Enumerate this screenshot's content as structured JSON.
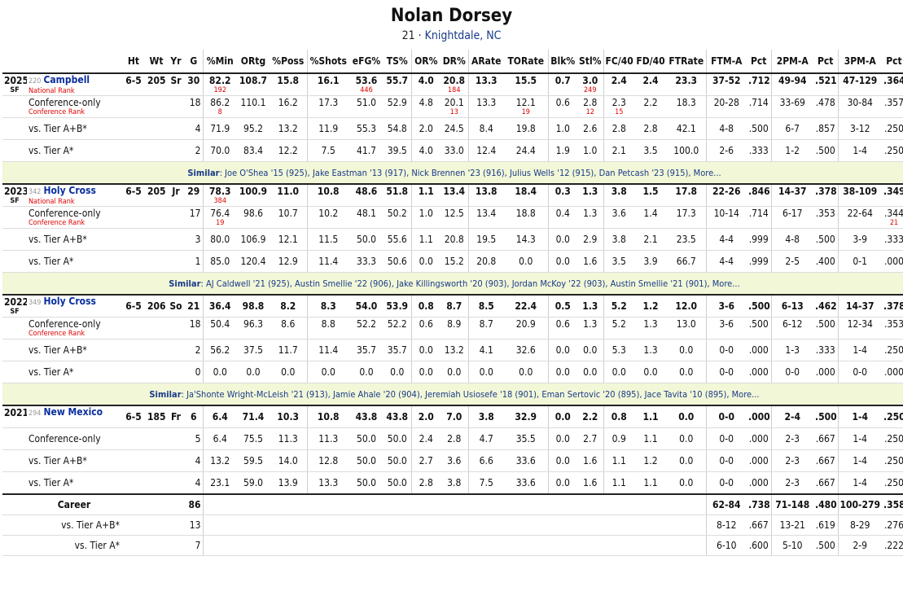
{
  "player": {
    "name": "Nolan Dorsey",
    "number": "21",
    "sep": " · ",
    "hometown": "Knightdale, NC"
  },
  "columns": [
    "Ht",
    "Wt",
    "Yr",
    "G",
    "%Min",
    "ORtg",
    "%Poss",
    "%Shots",
    "eFG%",
    "TS%",
    "OR%",
    "DR%",
    "ARate",
    "TORate",
    "Blk%",
    "Stl%",
    "FC/40",
    "FD/40",
    "FTRate",
    "FTM-A",
    "Pct",
    "2PM-A",
    "Pct",
    "3PM-A",
    "Pct"
  ],
  "labels": {
    "national_rank": "National Rank",
    "conference_rank": "Conference Rank",
    "similar": "Similar",
    "more": "More..."
  },
  "seasons": [
    {
      "year": "2025",
      "rank": "220",
      "team": "Campbell",
      "pos": "SF",
      "ht": "6-5",
      "wt": "205",
      "cls": "Sr",
      "g": "30",
      "stats": [
        "82.2",
        "108.7",
        "15.8",
        "16.1",
        "53.6",
        "55.7",
        "4.0",
        "20.8",
        "13.3",
        "15.5",
        "0.7",
        "3.0",
        "2.4",
        "2.4",
        "23.3",
        "37-52",
        ".712",
        "49-94",
        ".521",
        "47-129",
        ".364"
      ],
      "ranks": [
        "192",
        "",
        "",
        "",
        "446",
        "",
        "",
        "184",
        "",
        "",
        "",
        "249",
        "",
        "",
        "",
        "",
        "",
        "",
        "",
        "",
        ""
      ],
      "sub": [
        {
          "label": "Conference-only",
          "g": "18",
          "stats": [
            "86.2",
            "110.1",
            "16.2",
            "17.3",
            "51.0",
            "52.9",
            "4.8",
            "20.1",
            "13.3",
            "12.1",
            "0.6",
            "2.8",
            "2.3",
            "2.2",
            "18.3",
            "20-28",
            ".714",
            "33-69",
            ".478",
            "30-84",
            ".357"
          ],
          "ranks": [
            "8",
            "",
            "",
            "",
            "",
            "",
            "",
            "13",
            "",
            "19",
            "",
            "12",
            "15",
            "",
            "",
            "",
            "",
            "",
            "",
            "",
            ""
          ]
        },
        {
          "label": "vs. Tier A+B*",
          "g": "4",
          "stats": [
            "71.9",
            "95.2",
            "13.2",
            "11.9",
            "55.3",
            "54.8",
            "2.0",
            "24.5",
            "8.4",
            "19.8",
            "1.0",
            "2.6",
            "2.8",
            "2.8",
            "42.1",
            "4-8",
            ".500",
            "6-7",
            ".857",
            "3-12",
            ".250"
          ]
        },
        {
          "label": "vs. Tier A*",
          "g": "2",
          "stats": [
            "70.0",
            "83.4",
            "12.2",
            "7.5",
            "41.7",
            "39.5",
            "4.0",
            "33.0",
            "12.4",
            "24.4",
            "1.9",
            "1.0",
            "2.1",
            "3.5",
            "100.0",
            "2-6",
            ".333",
            "1-2",
            ".500",
            "1-4",
            ".250"
          ]
        }
      ],
      "similar": [
        "Joe O'Shea '15 (925)",
        "Jake Eastman '13 (917)",
        "Nick Brennen '23 (916)",
        "Julius Wells '12 (915)",
        "Dan Petcash '23 (915)"
      ]
    },
    {
      "year": "2023",
      "rank": "342",
      "team": "Holy Cross",
      "pos": "SF",
      "ht": "6-5",
      "wt": "205",
      "cls": "Jr",
      "g": "29",
      "stats": [
        "78.3",
        "100.9",
        "11.0",
        "10.8",
        "48.6",
        "51.8",
        "1.1",
        "13.4",
        "13.8",
        "18.4",
        "0.3",
        "1.3",
        "3.8",
        "1.5",
        "17.8",
        "22-26",
        ".846",
        "14-37",
        ".378",
        "38-109",
        ".349"
      ],
      "ranks": [
        "384",
        "",
        "",
        "",
        "",
        "",
        "",
        "",
        "",
        "",
        "",
        "",
        "",
        "",
        "",
        "",
        "",
        "",
        "",
        "",
        ""
      ],
      "sub": [
        {
          "label": "Conference-only",
          "g": "17",
          "stats": [
            "76.4",
            "98.6",
            "10.7",
            "10.2",
            "48.1",
            "50.2",
            "1.0",
            "12.5",
            "13.4",
            "18.8",
            "0.4",
            "1.3",
            "3.6",
            "1.4",
            "17.3",
            "10-14",
            ".714",
            "6-17",
            ".353",
            "22-64",
            ".344"
          ],
          "ranks": [
            "19",
            "",
            "",
            "",
            "",
            "",
            "",
            "",
            "",
            "",
            "",
            "",
            "",
            "",
            "",
            "",
            "",
            "",
            "",
            "",
            "21"
          ]
        },
        {
          "label": "vs. Tier A+B*",
          "g": "3",
          "stats": [
            "80.0",
            "106.9",
            "12.1",
            "11.5",
            "50.0",
            "55.6",
            "1.1",
            "20.8",
            "19.5",
            "14.3",
            "0.0",
            "2.9",
            "3.8",
            "2.1",
            "23.5",
            "4-4",
            ".999",
            "4-8",
            ".500",
            "3-9",
            ".333"
          ]
        },
        {
          "label": "vs. Tier A*",
          "g": "1",
          "stats": [
            "85.0",
            "120.4",
            "12.9",
            "11.4",
            "33.3",
            "50.6",
            "0.0",
            "15.2",
            "20.8",
            "0.0",
            "0.0",
            "1.6",
            "3.5",
            "3.9",
            "66.7",
            "4-4",
            ".999",
            "2-5",
            ".400",
            "0-1",
            ".000"
          ]
        }
      ],
      "similar": [
        "AJ Caldwell '21 (925)",
        "Austin Smellie '22 (906)",
        "Jake Killingsworth '20 (903)",
        "Jordan McKoy '22 (903)",
        "Austin Smellie '21 (901)"
      ]
    },
    {
      "year": "2022",
      "rank": "349",
      "team": "Holy Cross",
      "pos": "SF",
      "ht": "6-5",
      "wt": "206",
      "cls": "So",
      "g": "21",
      "stats": [
        "36.4",
        "98.8",
        "8.2",
        "8.3",
        "54.0",
        "53.9",
        "0.8",
        "8.7",
        "8.5",
        "22.4",
        "0.5",
        "1.3",
        "5.2",
        "1.2",
        "12.0",
        "3-6",
        ".500",
        "6-13",
        ".462",
        "14-37",
        ".378"
      ],
      "ranks": null,
      "sub": [
        {
          "label": "Conference-only",
          "g": "18",
          "stats": [
            "50.4",
            "96.3",
            "8.6",
            "8.8",
            "52.2",
            "52.2",
            "0.6",
            "8.9",
            "8.7",
            "20.9",
            "0.6",
            "1.3",
            "5.2",
            "1.3",
            "13.0",
            "3-6",
            ".500",
            "6-12",
            ".500",
            "12-34",
            ".353"
          ],
          "ranks": [
            "",
            "",
            "",
            "",
            "",
            "",
            "",
            "",
            "",
            "",
            "",
            "",
            "",
            "",
            "",
            "",
            "",
            "",
            "",
            "",
            ""
          ]
        },
        {
          "label": "vs. Tier A+B*",
          "g": "2",
          "stats": [
            "56.2",
            "37.5",
            "11.7",
            "11.4",
            "35.7",
            "35.7",
            "0.0",
            "13.2",
            "4.1",
            "32.6",
            "0.0",
            "0.0",
            "5.3",
            "1.3",
            "0.0",
            "0-0",
            ".000",
            "1-3",
            ".333",
            "1-4",
            ".250"
          ]
        },
        {
          "label": "vs. Tier A*",
          "g": "0",
          "stats": [
            "0.0",
            "0.0",
            "0.0",
            "0.0",
            "0.0",
            "0.0",
            "0.0",
            "0.0",
            "0.0",
            "0.0",
            "0.0",
            "0.0",
            "0.0",
            "0.0",
            "0.0",
            "0-0",
            ".000",
            "0-0",
            ".000",
            "0-0",
            ".000"
          ]
        }
      ],
      "similar": [
        "Ja'Shonte Wright-McLeish '21 (913)",
        "Jamie Ahale '20 (904)",
        "Jeremiah Usiosefe '18 (901)",
        "Eman Sertovic '20 (895)",
        "Jace Tavita '10 (895)"
      ]
    },
    {
      "year": "2021",
      "rank": "294",
      "team": "New Mexico",
      "pos": "",
      "ht": "6-5",
      "wt": "185",
      "cls": "Fr",
      "g": "6",
      "stats": [
        "6.4",
        "71.4",
        "10.3",
        "10.8",
        "43.8",
        "43.8",
        "2.0",
        "7.0",
        "3.8",
        "32.9",
        "0.0",
        "2.2",
        "0.8",
        "1.1",
        "0.0",
        "0-0",
        ".000",
        "2-4",
        ".500",
        "1-4",
        ".250"
      ],
      "ranks": null,
      "sub": [
        {
          "label": "Conference-only",
          "g": "5",
          "stats": [
            "6.4",
            "75.5",
            "11.3",
            "11.3",
            "50.0",
            "50.0",
            "2.4",
            "2.8",
            "4.7",
            "35.5",
            "0.0",
            "2.7",
            "0.9",
            "1.1",
            "0.0",
            "0-0",
            ".000",
            "2-3",
            ".667",
            "1-4",
            ".250"
          ]
        },
        {
          "label": "vs. Tier A+B*",
          "g": "4",
          "stats": [
            "13.2",
            "59.5",
            "14.0",
            "12.8",
            "50.0",
            "50.0",
            "2.7",
            "3.6",
            "6.6",
            "33.6",
            "0.0",
            "1.6",
            "1.1",
            "1.2",
            "0.0",
            "0-0",
            ".000",
            "2-3",
            ".667",
            "1-4",
            ".250"
          ]
        },
        {
          "label": "vs. Tier A*",
          "g": "4",
          "stats": [
            "23.1",
            "59.0",
            "13.9",
            "13.3",
            "50.0",
            "50.0",
            "2.8",
            "3.8",
            "7.5",
            "33.6",
            "0.0",
            "1.6",
            "1.1",
            "1.1",
            "0.0",
            "0-0",
            ".000",
            "2-3",
            ".667",
            "1-4",
            ".250"
          ]
        }
      ],
      "similar": null
    }
  ],
  "career": {
    "label": "Career",
    "g": "86",
    "stats": [
      "62-84",
      ".738",
      "71-148",
      ".480",
      "100-279",
      ".358"
    ],
    "sub": [
      {
        "label": "vs. Tier A+B*",
        "g": "13",
        "stats": [
          "8-12",
          ".667",
          "13-21",
          ".619",
          "8-29",
          ".276"
        ]
      },
      {
        "label": "vs. Tier A*",
        "g": "7",
        "stats": [
          "6-10",
          ".600",
          "5-10",
          ".500",
          "2-9",
          ".222"
        ]
      }
    ]
  }
}
